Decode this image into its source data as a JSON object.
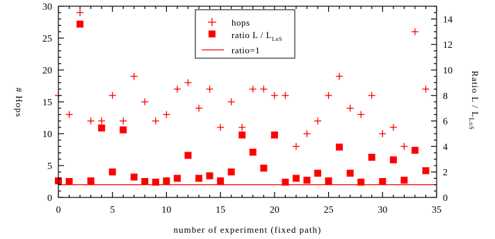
{
  "chart_data": {
    "type": "scatter",
    "xlabel": "number of experiment (fixed path)",
    "ylabel_left": "# Hops",
    "ylabel_right_main": "Ratio L / L",
    "ylabel_right_sub": "LoS",
    "xlim": [
      0,
      35
    ],
    "ylim_left": [
      0,
      30
    ],
    "ylim_right": [
      0,
      15
    ],
    "x_ticks": [
      0,
      5,
      10,
      15,
      20,
      25,
      30,
      35
    ],
    "y_left_ticks": [
      0,
      5,
      10,
      15,
      20,
      25,
      30
    ],
    "y_right_ticks": [
      0,
      2,
      4,
      6,
      8,
      10,
      12,
      14
    ],
    "colors": {
      "series": "#ff0000",
      "axis": "#000000"
    },
    "legend": {
      "placement": "top-center",
      "entries": [
        {
          "label": "hops",
          "marker": "plus"
        },
        {
          "label_main": "ratio L / L",
          "label_sub": "LoS",
          "marker": "square"
        },
        {
          "label": "ratio=1",
          "marker": "line"
        }
      ]
    },
    "series": [
      {
        "name": "hops",
        "axis": "left",
        "marker": "plus",
        "x": [
          0,
          1,
          2,
          3,
          4,
          5,
          6,
          7,
          8,
          9,
          10,
          11,
          12,
          13,
          14,
          15,
          16,
          17,
          18,
          19,
          20,
          21,
          22,
          23,
          24,
          25,
          26,
          27,
          28,
          29,
          30,
          31,
          32,
          33,
          34
        ],
        "values": [
          16,
          13,
          29,
          12,
          12,
          16,
          12,
          19,
          15,
          12,
          13,
          17,
          18,
          14,
          17,
          11,
          15,
          11,
          17,
          17,
          16,
          16,
          8,
          10,
          12,
          16,
          19,
          14,
          13,
          16,
          10,
          11,
          8,
          26,
          17
        ]
      },
      {
        "name": "ratio L / L LoS",
        "axis": "right",
        "marker": "square",
        "x": [
          0,
          1,
          2,
          3,
          4,
          5,
          6,
          7,
          8,
          9,
          10,
          11,
          12,
          13,
          14,
          15,
          16,
          17,
          18,
          19,
          20,
          21,
          22,
          23,
          24,
          25,
          26,
          27,
          28,
          29,
          30,
          31,
          32,
          33,
          34
        ],
        "values": [
          1.3,
          1.25,
          13.6,
          1.3,
          5.45,
          2.0,
          5.3,
          1.6,
          1.25,
          1.2,
          1.3,
          1.5,
          3.3,
          1.5,
          1.7,
          1.3,
          2.0,
          4.9,
          3.55,
          2.3,
          4.9,
          1.2,
          1.5,
          1.35,
          1.9,
          1.3,
          3.95,
          1.9,
          1.2,
          3.15,
          1.25,
          2.95,
          1.35,
          3.7,
          2.1
        ]
      },
      {
        "name": "ratio=1",
        "axis": "right",
        "marker": "line",
        "x": [
          0,
          35
        ],
        "values": [
          1,
          1
        ]
      }
    ]
  }
}
